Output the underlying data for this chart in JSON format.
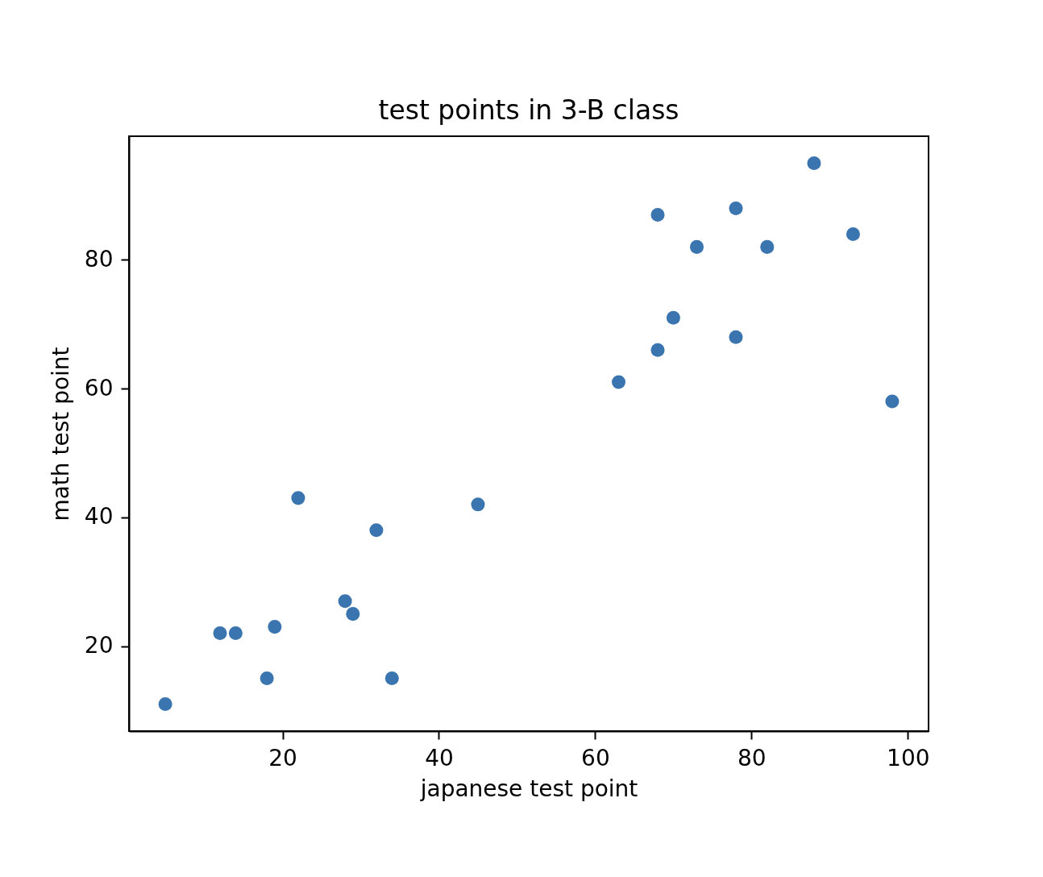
{
  "chart_data": {
    "type": "scatter",
    "title": "test points in 3-B class",
    "xlabel": "japanese test point",
    "ylabel": "math test point",
    "x": [
      5,
      12,
      14,
      18,
      19,
      22,
      28,
      29,
      32,
      34,
      45,
      63,
      68,
      68,
      70,
      73,
      78,
      78,
      82,
      88,
      93,
      98
    ],
    "values": [
      11,
      22,
      22,
      15,
      23,
      43,
      27,
      25,
      38,
      15,
      42,
      61,
      87,
      66,
      71,
      82,
      88,
      68,
      82,
      95,
      84,
      58
    ],
    "color": "#3a75b0",
    "xlim": [
      0.35,
      102.65
    ],
    "ylim": [
      6.8,
      99.2
    ],
    "xticks": [
      20,
      40,
      60,
      80,
      100
    ],
    "yticks": [
      20,
      40,
      60,
      80
    ],
    "marker": "circle"
  }
}
